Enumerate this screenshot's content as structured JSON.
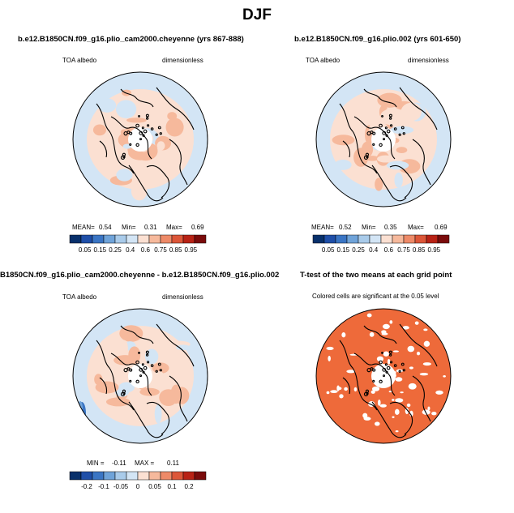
{
  "title": "DJF",
  "panels": [
    {
      "title": "b.e12.B1850CN.f09_g16.plio_cam2000.cheyenne (yrs 867-888)",
      "left_label": "TOA albedo",
      "right_label": "dimensionless",
      "stats": {
        "mean_label": "MEAN=",
        "mean": "0.54",
        "min_label": "Min=",
        "min": "0.31",
        "max_label": "Max=",
        "max": "0.69"
      },
      "colorbar": [
        "0.05",
        "0.15",
        "0.25",
        "0.4",
        "0.6",
        "0.75",
        "0.85",
        "0.95"
      ]
    },
    {
      "title": "b.e12.B1850CN.f09_g16.plio.002 (yrs 601-650)",
      "left_label": "TOA albedo",
      "right_label": "dimensionless",
      "stats": {
        "mean_label": "MEAN=",
        "mean": "0.52",
        "min_label": "Min=",
        "min": "0.35",
        "max_label": "Max=",
        "max": "0.69"
      },
      "colorbar": [
        "0.05",
        "0.15",
        "0.25",
        "0.4",
        "0.6",
        "0.75",
        "0.85",
        "0.95"
      ]
    },
    {
      "title": "B1850CN.f09_g16.plio_cam2000.cheyenne - b.e12.B1850CN.f09_g16.plio.002",
      "left_label": "TOA albedo",
      "right_label": "dimensionless",
      "stats": {
        "min_label": "MIN =",
        "min": "-0.11",
        "max_label": "MAX =",
        "max": "0.11"
      },
      "colorbar": [
        "-0.2",
        "-0.1",
        "-0.05",
        "0",
        "0.05",
        "0.1",
        "0.2"
      ]
    },
    {
      "title": "T-test of the two means at each grid point",
      "subtitle": "Colored cells are significant at the 0.05 level"
    }
  ],
  "colors": {
    "abs_scale": [
      "#08306b",
      "#1f4fa8",
      "#3a75c4",
      "#6fa3d9",
      "#a9cbea",
      "#d3e5f5",
      "#fbe0d2",
      "#f6b99c",
      "#ee8a68",
      "#dc5638",
      "#b82215",
      "#7a0b0b"
    ],
    "diff_scale": [
      "#08306b",
      "#1f4fa8",
      "#3a75c4",
      "#6fa3d9",
      "#a9cbea",
      "#d3e5f5",
      "#fbe0d2",
      "#f6b99c",
      "#ee8a68",
      "#dc5638",
      "#b82215",
      "#7a0b0b"
    ],
    "ttest": "#ee6a3a",
    "light_blue": "#d3e5f5",
    "light_red": "#fbe0d2",
    "mid_red": "#f6b99c"
  }
}
